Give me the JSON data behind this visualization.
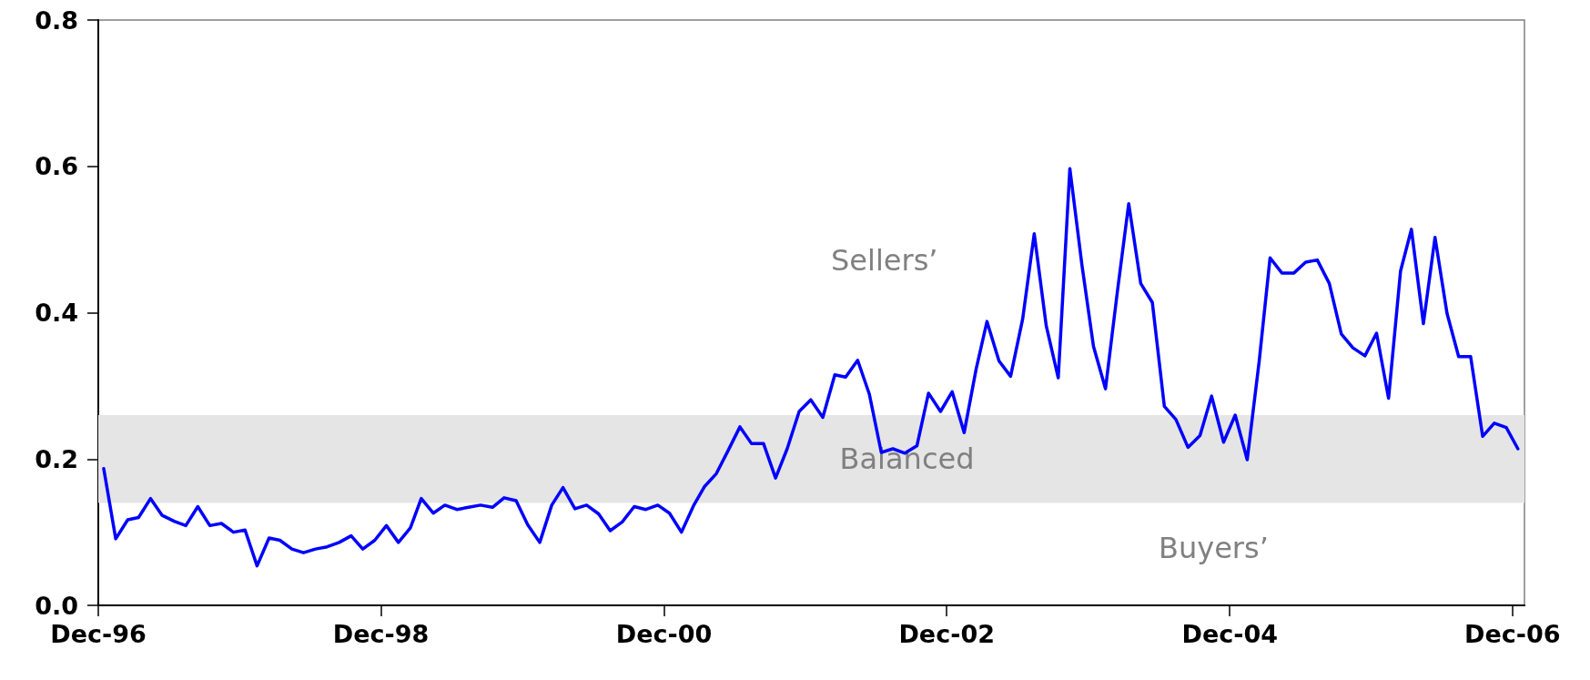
{
  "chart_data": {
    "type": "line",
    "x": [
      "1996-12-15",
      "1997-01-15",
      "1997-02-15",
      "1997-03-15",
      "1997-04-15",
      "1997-05-15",
      "1997-06-15",
      "1997-07-15",
      "1997-08-15",
      "1997-09-15",
      "1997-10-15",
      "1997-11-15",
      "1997-12-15",
      "1998-01-15",
      "1998-02-15",
      "1998-03-15",
      "1998-04-15",
      "1998-05-15",
      "1998-06-15",
      "1998-07-15",
      "1998-08-15",
      "1998-09-15",
      "1998-10-15",
      "1998-11-15",
      "1998-12-15",
      "1999-01-15",
      "1999-02-15",
      "1999-03-15",
      "1999-04-15",
      "1999-05-15",
      "1999-06-15",
      "1999-07-15",
      "1999-08-15",
      "1999-09-15",
      "1999-10-15",
      "1999-11-15",
      "1999-12-15",
      "2000-01-15",
      "2000-02-15",
      "2000-03-15",
      "2000-04-15",
      "2000-05-15",
      "2000-06-15",
      "2000-07-15",
      "2000-08-15",
      "2000-09-15",
      "2000-10-15",
      "2000-11-15",
      "2000-12-15",
      "2001-01-15",
      "2001-02-15",
      "2001-03-15",
      "2001-04-15",
      "2001-05-15",
      "2001-06-15",
      "2001-07-15",
      "2001-08-15",
      "2001-09-15",
      "2001-10-15",
      "2001-11-15",
      "2001-12-15",
      "2002-01-15",
      "2002-02-15",
      "2002-03-15",
      "2002-04-15",
      "2002-05-15",
      "2002-06-15",
      "2002-07-15",
      "2002-08-15",
      "2002-09-15",
      "2002-10-15",
      "2002-11-15",
      "2002-12-15",
      "2003-01-15",
      "2003-02-15",
      "2003-03-15",
      "2003-04-15",
      "2003-05-15",
      "2003-06-15",
      "2003-07-15",
      "2003-08-15",
      "2003-09-15",
      "2003-10-15",
      "2003-11-15",
      "2003-12-15",
      "2004-01-15",
      "2004-02-15",
      "2004-03-15",
      "2004-04-15",
      "2004-05-15",
      "2004-06-15",
      "2004-07-15",
      "2004-08-15",
      "2004-09-15",
      "2004-10-15",
      "2004-11-15",
      "2004-12-15",
      "2005-01-15",
      "2005-02-15",
      "2005-03-15",
      "2005-04-15",
      "2005-05-15",
      "2005-06-15",
      "2005-07-15",
      "2005-08-15",
      "2005-09-15",
      "2005-10-15",
      "2005-11-15",
      "2005-12-15",
      "2006-01-15",
      "2006-02-15",
      "2006-03-15",
      "2006-04-15",
      "2006-05-15",
      "2006-06-15",
      "2006-07-15",
      "2006-08-15",
      "2006-09-15",
      "2006-10-15",
      "2006-11-15",
      "2006-12-15"
    ],
    "series": [
      {
        "color": "#0000ff",
        "values": [
          0.187,
          0.091,
          0.117,
          0.12,
          0.146,
          0.123,
          0.115,
          0.109,
          0.135,
          0.109,
          0.112,
          0.1,
          0.103,
          0.054,
          0.092,
          0.089,
          0.077,
          0.072,
          0.077,
          0.08,
          0.086,
          0.095,
          0.077,
          0.089,
          0.109,
          0.086,
          0.106,
          0.146,
          0.126,
          0.137,
          0.131,
          0.134,
          0.137,
          0.134,
          0.147,
          0.143,
          0.11,
          0.086,
          0.137,
          0.161,
          0.132,
          0.137,
          0.125,
          0.102,
          0.114,
          0.135,
          0.131,
          0.137,
          0.126,
          0.1,
          0.136,
          0.162,
          0.18,
          0.211,
          0.244,
          0.221,
          0.221,
          0.174,
          0.214,
          0.265,
          0.281,
          0.257,
          0.315,
          0.312,
          0.335,
          0.289,
          0.209,
          0.214,
          0.208,
          0.218,
          0.29,
          0.265,
          0.292,
          0.236,
          0.323,
          0.388,
          0.334,
          0.313,
          0.391,
          0.508,
          0.382,
          0.311,
          0.597,
          0.466,
          0.354,
          0.296,
          0.43,
          0.549,
          0.44,
          0.414,
          0.272,
          0.254,
          0.216,
          0.232,
          0.286,
          0.223,
          0.26,
          0.199,
          0.334,
          0.475,
          0.454,
          0.454,
          0.469,
          0.472,
          0.44,
          0.371,
          0.352,
          0.341,
          0.372,
          0.283,
          0.457,
          0.514,
          0.385,
          0.503,
          0.399,
          0.34,
          0.34,
          0.231,
          0.249,
          0.243,
          0.214
        ]
      }
    ],
    "xlim": [
      "1996-12-01",
      "2007-01-01"
    ],
    "xticks": [
      {
        "value": "1996-12-01",
        "label": "Dec-96"
      },
      {
        "value": "1998-12-01",
        "label": "Dec-98"
      },
      {
        "value": "2000-12-01",
        "label": "Dec-00"
      },
      {
        "value": "2002-12-01",
        "label": "Dec-02"
      },
      {
        "value": "2004-12-01",
        "label": "Dec-04"
      },
      {
        "value": "2006-12-01",
        "label": "Dec-06"
      }
    ],
    "ylim": [
      0,
      0.8
    ],
    "yticks": [
      {
        "value": 0,
        "label": "0.0"
      },
      0.2,
      0.4,
      0.6,
      0.8
    ],
    "bands": [
      {
        "axis": "y",
        "from": 0.14,
        "to": 0.26,
        "label": "Balanced",
        "color": "#e5e5e5"
      }
    ],
    "annotations": [
      "Sellers’",
      "Buyers’"
    ],
    "grid": false,
    "marker": "none",
    "line_style": "solid"
  }
}
